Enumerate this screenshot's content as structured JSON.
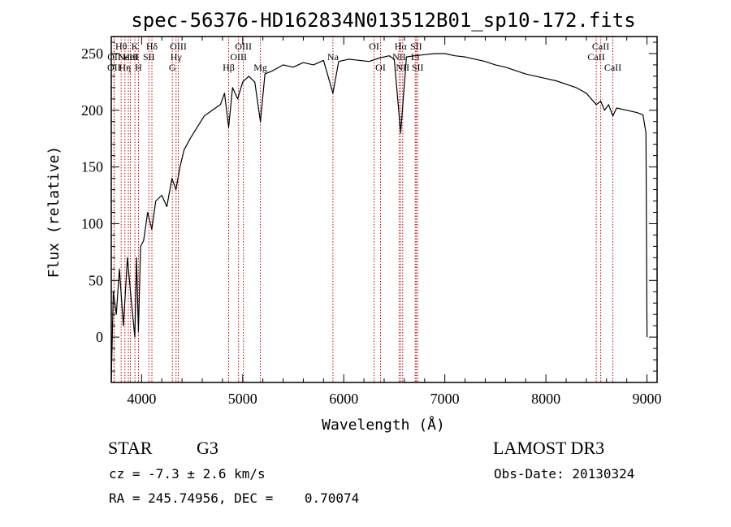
{
  "chart_data": {
    "type": "line",
    "title": "spec-56376-HD162834N013512B01_sp10-172.fits",
    "xlabel": "Wavelength (Å)",
    "ylabel": "Flux (relative)",
    "xlim": [
      3700,
      9100
    ],
    "ylim": [
      -40,
      265
    ],
    "xticks": [
      4000,
      5000,
      6000,
      7000,
      8000,
      9000
    ],
    "yticks": [
      0,
      50,
      100,
      150,
      200,
      250
    ],
    "series": [
      {
        "name": "spectrum",
        "x": [
          3700,
          3720,
          3750,
          3780,
          3820,
          3860,
          3900,
          3933,
          3950,
          3968,
          3990,
          4020,
          4060,
          4101,
          4140,
          4200,
          4250,
          4300,
          4340,
          4380,
          4420,
          4480,
          4550,
          4620,
          4700,
          4780,
          4820,
          4861,
          4900,
          4950,
          5000,
          5060,
          5120,
          5175,
          5220,
          5300,
          5400,
          5500,
          5600,
          5700,
          5800,
          5893,
          5950,
          6050,
          6150,
          6250,
          6350,
          6450,
          6500,
          6563,
          6620,
          6700,
          6800,
          6900,
          7000,
          7100,
          7200,
          7300,
          7400,
          7500,
          7600,
          7700,
          7800,
          7900,
          8000,
          8100,
          8200,
          8300,
          8400,
          8498,
          8542,
          8580,
          8620,
          8662,
          8700,
          8800,
          8900,
          8960,
          8990,
          9000
        ],
        "y": [
          -40,
          40,
          20,
          60,
          10,
          70,
          30,
          0,
          70,
          5,
          80,
          85,
          110,
          95,
          120,
          125,
          115,
          140,
          130,
          150,
          165,
          175,
          185,
          195,
          200,
          205,
          215,
          185,
          220,
          210,
          225,
          230,
          225,
          190,
          232,
          235,
          240,
          238,
          242,
          240,
          244,
          215,
          243,
          245,
          244,
          243,
          246,
          248,
          245,
          180,
          247,
          248,
          249,
          250,
          250,
          248,
          247,
          245,
          243,
          240,
          238,
          235,
          232,
          230,
          228,
          226,
          223,
          220,
          215,
          205,
          208,
          200,
          205,
          195,
          202,
          200,
          198,
          196,
          180,
          0
        ]
      }
    ],
    "spectral_lines": [
      {
        "wavelength": 3727,
        "label": "OII",
        "row": 2
      },
      {
        "wavelength": 3729,
        "label": "OII",
        "row": 1
      },
      {
        "wavelength": 3798,
        "label": "Hθ",
        "row": 0
      },
      {
        "wavelength": 3835,
        "label": "Hη",
        "row": 2
      },
      {
        "wavelength": 3869,
        "label": "NeIII",
        "row": 1
      },
      {
        "wavelength": 3889,
        "label": "HeI",
        "row": 1
      },
      {
        "wavelength": 3934,
        "label": "K",
        "row": 0
      },
      {
        "wavelength": 3969,
        "label": "H",
        "row": 2
      },
      {
        "wavelength": 4072,
        "label": "SII",
        "row": 1
      },
      {
        "wavelength": 4102,
        "label": "Hδ",
        "row": 0
      },
      {
        "wavelength": 4304,
        "label": "G",
        "row": 2
      },
      {
        "wavelength": 4341,
        "label": "Hγ",
        "row": 1
      },
      {
        "wavelength": 4363,
        "label": "OIII",
        "row": 0
      },
      {
        "wavelength": 4861,
        "label": "Hβ",
        "row": 2
      },
      {
        "wavelength": 4959,
        "label": "OIII",
        "row": 1
      },
      {
        "wavelength": 5007,
        "label": "OIII",
        "row": 0
      },
      {
        "wavelength": 5175,
        "label": "Mg",
        "row": 2
      },
      {
        "wavelength": 5893,
        "label": "Na",
        "row": 1
      },
      {
        "wavelength": 6300,
        "label": "OI",
        "row": 0
      },
      {
        "wavelength": 6364,
        "label": "OI",
        "row": 2
      },
      {
        "wavelength": 6548,
        "label": "NII",
        "row": 1
      },
      {
        "wavelength": 6563,
        "label": "Hα",
        "row": 0
      },
      {
        "wavelength": 6583,
        "label": "NII",
        "row": 2
      },
      {
        "wavelength": 6707,
        "label": "Li",
        "row": 1
      },
      {
        "wavelength": 6716,
        "label": "SII",
        "row": 0
      },
      {
        "wavelength": 6731,
        "label": "SII",
        "row": 2
      },
      {
        "wavelength": 8498,
        "label": "CaII",
        "row": 1
      },
      {
        "wavelength": 8542,
        "label": "CaII",
        "row": 0
      },
      {
        "wavelength": 8662,
        "label": "CaII",
        "row": 2
      }
    ]
  },
  "info": {
    "object_class": "STAR",
    "subclass": "G3",
    "survey": "LAMOST DR3",
    "redshift_text": "cz = -7.3 ± 2.6 km/s",
    "obs_date_text": "Obs-Date: 20130324",
    "coords_text": "RA = 245.74956, DEC =    0.70074"
  },
  "colors": {
    "spectrum": "#000000",
    "line_markers": "#c00000",
    "axes": "#000000",
    "background": "#ffffff"
  }
}
